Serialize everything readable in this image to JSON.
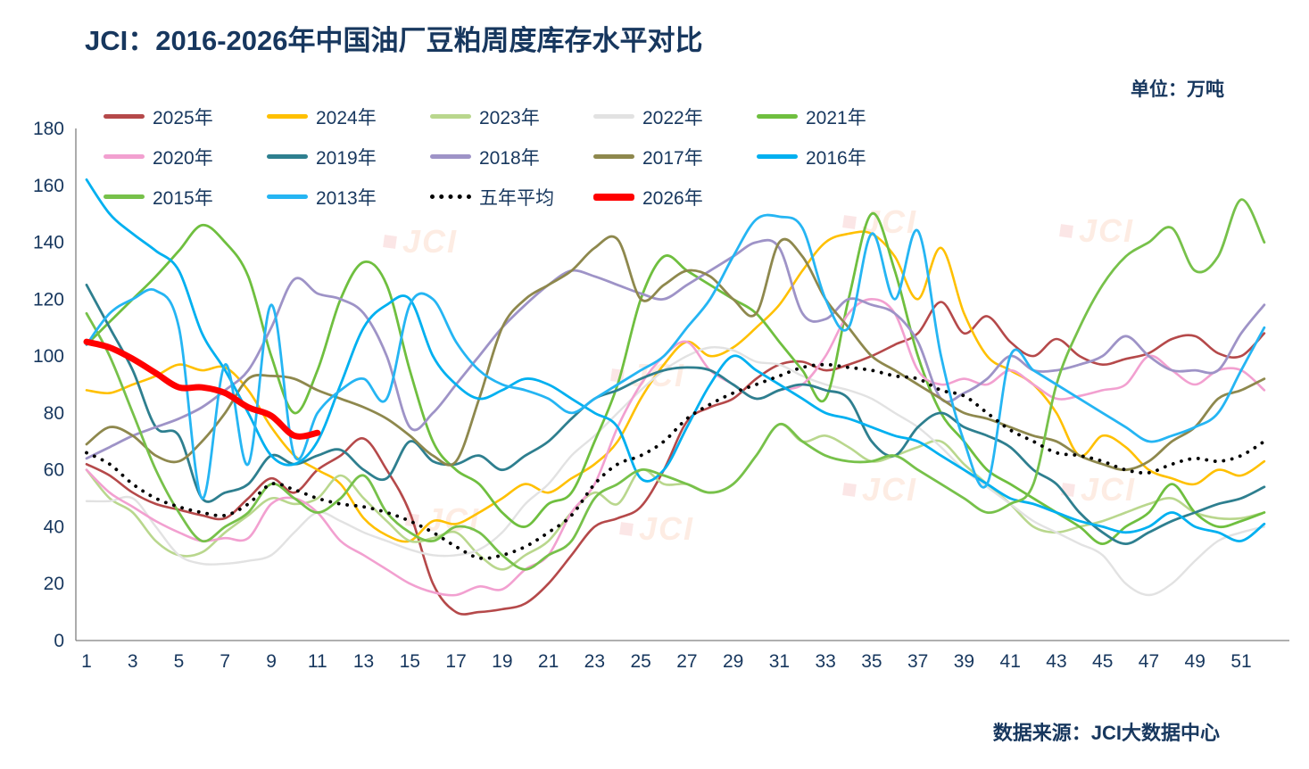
{
  "title": "JCI：2016-2026年中国油厂豆粕周度库存水平对比",
  "unit_label": "单位：万吨",
  "source": "数据来源：JCI大数据中心",
  "watermark": "JCI",
  "chart_data": {
    "type": "line",
    "title": "JCI：2016-2026年中国油厂豆粕周度库存水平对比",
    "unit": "万吨",
    "ylim": [
      0,
      180
    ],
    "y_ticks": [
      0,
      20,
      40,
      60,
      80,
      100,
      120,
      140,
      160,
      180
    ],
    "x_ticks": [
      1,
      3,
      5,
      7,
      9,
      11,
      13,
      15,
      17,
      19,
      21,
      23,
      25,
      27,
      29,
      31,
      33,
      35,
      37,
      39,
      41,
      43,
      45,
      47,
      49,
      51
    ],
    "x_max_week": 52,
    "grid": false,
    "legend_position": "top",
    "series": [
      {
        "label": "2025年",
        "color": "#b5494a",
        "width": 2.6,
        "dash": null,
        "start_week": 1,
        "values": [
          62,
          58,
          52,
          48,
          46,
          44,
          43,
          50,
          57,
          52,
          60,
          65,
          71,
          60,
          45,
          20,
          10,
          10,
          11,
          13,
          20,
          30,
          40,
          43,
          47,
          60,
          77,
          82,
          85,
          92,
          97,
          98,
          95,
          97,
          100,
          104,
          108,
          119,
          108,
          114,
          105,
          100,
          106,
          100,
          97,
          99,
          101,
          106,
          107,
          101,
          100,
          108
        ]
      },
      {
        "label": "2024年",
        "color": "#ffc000",
        "width": 2.6,
        "dash": null,
        "start_week": 1,
        "values": [
          88,
          87,
          90,
          93,
          97,
          95,
          96,
          88,
          75,
          65,
          60,
          55,
          43,
          37,
          35,
          42,
          41,
          45,
          50,
          55,
          52,
          57,
          62,
          70,
          85,
          97,
          105,
          100,
          103,
          110,
          118,
          130,
          140,
          143,
          143,
          135,
          120,
          138,
          115,
          100,
          95,
          90,
          80,
          65,
          72,
          68,
          60,
          57,
          55,
          60,
          58,
          63
        ]
      },
      {
        "label": "2023年",
        "color": "#b9d78d",
        "width": 2.6,
        "dash": null,
        "start_week": 1,
        "values": [
          60,
          50,
          45,
          35,
          30,
          31,
          38,
          44,
          50,
          48,
          50,
          58,
          50,
          42,
          35,
          36,
          38,
          30,
          25,
          30,
          35,
          45,
          52,
          48,
          60,
          55,
          55,
          52,
          55,
          65,
          76,
          70,
          72,
          68,
          63,
          65,
          68,
          70,
          62,
          55,
          48,
          40,
          38,
          40,
          42,
          45,
          48,
          50,
          45,
          43,
          43,
          45
        ]
      },
      {
        "label": "2022年",
        "color": "#e2e2e2",
        "width": 2.4,
        "dash": null,
        "start_week": 1,
        "values": [
          49,
          49,
          50,
          40,
          30,
          27,
          27,
          28,
          30,
          38,
          45,
          42,
          38,
          35,
          32,
          30,
          30,
          32,
          38,
          48,
          55,
          65,
          72,
          80,
          88,
          95,
          100,
          103,
          102,
          98,
          97,
          93,
          90,
          88,
          85,
          80,
          75,
          68,
          60,
          54,
          48,
          42,
          38,
          34,
          30,
          20,
          16,
          20,
          28,
          35,
          38,
          40
        ]
      },
      {
        "label": "2021年",
        "color": "#6fbf3f",
        "width": 2.8,
        "dash": null,
        "start_week": 1,
        "values": [
          104,
          112,
          120,
          128,
          137,
          146,
          140,
          128,
          100,
          80,
          95,
          120,
          133,
          125,
          95,
          70,
          60,
          55,
          45,
          40,
          48,
          52,
          70,
          90,
          120,
          135,
          130,
          125,
          120,
          115,
          105,
          95,
          85,
          120,
          150,
          130,
          100,
          80,
          70,
          60,
          55,
          50,
          45,
          40,
          34,
          40,
          45,
          55,
          45,
          40,
          42,
          45
        ]
      },
      {
        "label": "2020年",
        "color": "#f2a0d0",
        "width": 2.6,
        "dash": null,
        "start_week": 1,
        "values": [
          60,
          52,
          47,
          42,
          38,
          35,
          36,
          36,
          48,
          50,
          45,
          35,
          30,
          25,
          20,
          17,
          16,
          19,
          18,
          25,
          30,
          45,
          55,
          75,
          90,
          100,
          105,
          95,
          90,
          85,
          88,
          90,
          100,
          115,
          120,
          115,
          95,
          90,
          92,
          90,
          95,
          90,
          85,
          86,
          88,
          90,
          100,
          95,
          90,
          95,
          95,
          88
        ]
      },
      {
        "label": "2019年",
        "color": "#2e7f8f",
        "width": 2.8,
        "dash": null,
        "start_week": 1,
        "values": [
          125,
          110,
          95,
          75,
          72,
          50,
          52,
          55,
          65,
          62,
          65,
          67,
          60,
          57,
          70,
          63,
          62,
          65,
          60,
          65,
          70,
          78,
          85,
          88,
          92,
          95,
          96,
          95,
          90,
          85,
          88,
          90,
          88,
          85,
          70,
          65,
          75,
          80,
          75,
          72,
          68,
          60,
          55,
          45,
          38,
          34,
          38,
          42,
          45,
          48,
          50,
          54
        ]
      },
      {
        "label": "2018年",
        "color": "#9e93c7",
        "width": 2.8,
        "dash": null,
        "start_week": 1,
        "values": [
          64,
          68,
          72,
          75,
          78,
          82,
          88,
          95,
          110,
          127,
          122,
          120,
          115,
          100,
          75,
          80,
          90,
          100,
          110,
          118,
          125,
          130,
          128,
          125,
          122,
          120,
          125,
          130,
          135,
          140,
          138,
          115,
          113,
          120,
          118,
          115,
          105,
          85,
          87,
          92,
          100,
          95,
          95,
          97,
          100,
          107,
          100,
          95,
          95,
          95,
          108,
          118
        ]
      },
      {
        "label": "2017年",
        "color": "#8e884d",
        "width": 2.8,
        "dash": null,
        "start_week": 1,
        "values": [
          69,
          75,
          72,
          65,
          63,
          70,
          80,
          92,
          93,
          92,
          88,
          85,
          82,
          78,
          72,
          65,
          63,
          85,
          110,
          120,
          125,
          130,
          138,
          141,
          120,
          125,
          130,
          128,
          120,
          115,
          140,
          135,
          120,
          110,
          100,
          95,
          90,
          85,
          80,
          78,
          75,
          72,
          70,
          65,
          62,
          60,
          63,
          70,
          75,
          85,
          88,
          92
        ]
      },
      {
        "label": "2016年",
        "color": "#00b0f0",
        "width": 2.8,
        "dash": null,
        "start_week": 1,
        "values": [
          162,
          150,
          143,
          137,
          130,
          108,
          95,
          80,
          65,
          62,
          70,
          90,
          110,
          118,
          120,
          100,
          90,
          85,
          88,
          92,
          90,
          85,
          80,
          75,
          57,
          60,
          75,
          90,
          100,
          95,
          90,
          85,
          80,
          78,
          75,
          72,
          70,
          65,
          60,
          55,
          50,
          48,
          45,
          42,
          40,
          38,
          40,
          45,
          40,
          38,
          35,
          41
        ]
      },
      {
        "label": "2015年",
        "color": "#77c14a",
        "width": 2.8,
        "dash": null,
        "start_week": 1,
        "values": [
          115,
          100,
          80,
          60,
          45,
          35,
          40,
          45,
          55,
          50,
          45,
          50,
          58,
          45,
          38,
          35,
          40,
          38,
          30,
          25,
          30,
          35,
          50,
          55,
          60,
          58,
          55,
          52,
          55,
          65,
          76,
          70,
          65,
          63,
          63,
          65,
          60,
          55,
          50,
          45,
          48,
          55,
          90,
          110,
          125,
          135,
          140,
          145,
          130,
          135,
          155,
          140
        ]
      },
      {
        "label": "2013年",
        "color": "#25b5f3",
        "width": 2.8,
        "dash": null,
        "start_week": 1,
        "values": [
          104,
          115,
          120,
          123,
          110,
          50,
          97,
          62,
          118,
          65,
          80,
          88,
          92,
          85,
          118,
          120,
          105,
          95,
          90,
          88,
          85,
          80,
          85,
          90,
          95,
          100,
          110,
          120,
          135,
          148,
          149,
          145,
          120,
          110,
          143,
          120,
          144,
          100,
          70,
          55,
          100,
          95,
          90,
          85,
          80,
          75,
          70,
          72,
          75,
          80,
          95,
          110
        ]
      },
      {
        "label": "五年平均",
        "color": "#000000",
        "width": 3.8,
        "dash": "dot",
        "start_week": 1,
        "values": [
          66,
          62,
          55,
          50,
          47,
          45,
          44,
          48,
          55,
          53,
          50,
          48,
          47,
          45,
          42,
          38,
          33,
          29,
          30,
          33,
          38,
          44,
          55,
          62,
          65,
          70,
          78,
          83,
          87,
          90,
          93,
          96,
          97,
          96,
          95,
          93,
          92,
          88,
          86,
          80,
          74,
          70,
          66,
          65,
          63,
          60,
          59,
          62,
          64,
          63,
          65,
          70
        ]
      },
      {
        "label": "2026年",
        "color": "#ff0000",
        "width": 7,
        "dash": null,
        "start_week": 1,
        "values": [
          105,
          103,
          99,
          94,
          89,
          89,
          87,
          82,
          79,
          72,
          73
        ]
      }
    ]
  }
}
